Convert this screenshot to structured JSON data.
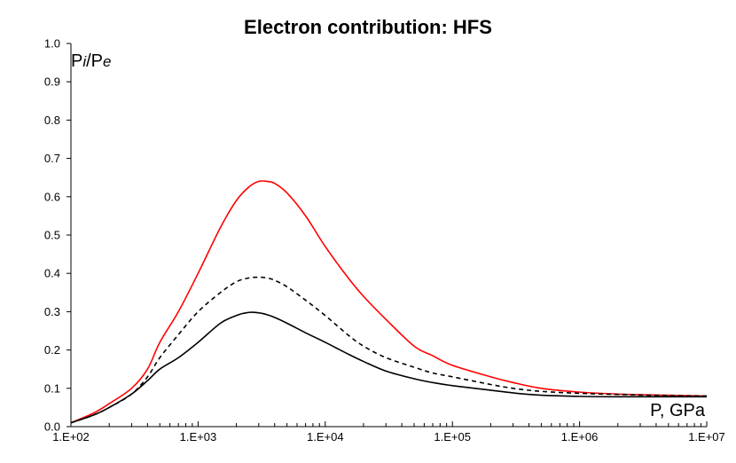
{
  "chart_data": {
    "type": "line",
    "title": "Electron contribution: HFS",
    "ylabel": "Pi/Pe",
    "xlabel": "P, GPa",
    "xscale": "log",
    "xlim": [
      100,
      10000000
    ],
    "ylim": [
      0,
      1
    ],
    "x_tick_labels": [
      "1.E+02",
      "1.E+03",
      "1.E+04",
      "1.E+05",
      "1.E+06",
      "1.E+07"
    ],
    "y_tick_labels": [
      "0.0",
      "0.1",
      "0.2",
      "0.3",
      "0.4",
      "0.5",
      "0.6",
      "0.7",
      "0.8",
      "0.9",
      "1.0"
    ],
    "grid": false,
    "series": [
      {
        "color": "#ff0000",
        "style": "solid",
        "x": [
          100,
          150,
          200,
          300,
          400,
          500,
          700,
          1000,
          1500,
          2000,
          2500,
          3000,
          3500,
          4000,
          5000,
          7000,
          10000,
          15000,
          20000,
          30000,
          50000,
          70000,
          100000,
          200000,
          300000,
          500000,
          1000000,
          2000000,
          5000000,
          10000000
        ],
        "y": [
          0.01,
          0.035,
          0.06,
          0.1,
          0.15,
          0.22,
          0.3,
          0.4,
          0.52,
          0.59,
          0.625,
          0.64,
          0.64,
          0.635,
          0.61,
          0.55,
          0.47,
          0.39,
          0.34,
          0.28,
          0.21,
          0.185,
          0.16,
          0.13,
          0.115,
          0.1,
          0.09,
          0.085,
          0.082,
          0.08
        ]
      },
      {
        "color": "#000000",
        "style": "dashed",
        "x": [
          100,
          150,
          200,
          300,
          400,
          500,
          700,
          1000,
          1500,
          2000,
          2500,
          3000,
          3500,
          4000,
          5000,
          7000,
          10000,
          15000,
          20000,
          30000,
          50000,
          70000,
          100000,
          200000,
          300000,
          500000,
          1000000,
          2000000,
          5000000,
          10000000
        ],
        "y": [
          0.01,
          0.03,
          0.05,
          0.085,
          0.13,
          0.18,
          0.24,
          0.3,
          0.35,
          0.378,
          0.388,
          0.39,
          0.388,
          0.382,
          0.365,
          0.33,
          0.29,
          0.24,
          0.21,
          0.18,
          0.155,
          0.14,
          0.13,
          0.11,
          0.1,
          0.092,
          0.087,
          0.084,
          0.081,
          0.08
        ]
      },
      {
        "color": "#000000",
        "style": "solid",
        "x": [
          100,
          150,
          200,
          300,
          400,
          500,
          700,
          1000,
          1500,
          2000,
          2500,
          3000,
          3500,
          4000,
          5000,
          7000,
          10000,
          15000,
          20000,
          30000,
          50000,
          70000,
          100000,
          200000,
          300000,
          500000,
          1000000,
          2000000,
          5000000,
          10000000
        ],
        "y": [
          0.01,
          0.03,
          0.05,
          0.085,
          0.12,
          0.15,
          0.18,
          0.22,
          0.27,
          0.29,
          0.298,
          0.297,
          0.292,
          0.285,
          0.27,
          0.245,
          0.22,
          0.19,
          0.17,
          0.145,
          0.125,
          0.115,
          0.107,
          0.095,
          0.088,
          0.082,
          0.079,
          0.078,
          0.078,
          0.078
        ]
      }
    ]
  }
}
